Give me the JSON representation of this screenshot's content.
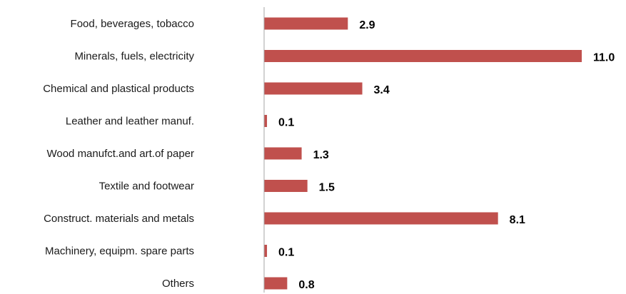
{
  "chart_data": {
    "type": "bar",
    "orientation": "horizontal",
    "categories": [
      "Food, beverages, tobacco",
      "Minerals, fuels, electricity",
      "Chemical and plastical products",
      "Leather and leather manuf.",
      "Wood manufct.and art.of paper",
      "Textile and footwear",
      "Construct. materials and metals",
      "Machinery, equipm. spare parts",
      "Others"
    ],
    "values": [
      2.9,
      11.0,
      3.4,
      0.1,
      1.3,
      1.5,
      8.1,
      0.1,
      0.8
    ],
    "value_labels": [
      "2.9",
      "11.0",
      "3.4",
      "0.1",
      "1.3",
      "1.5",
      "8.1",
      "0.1",
      "0.8"
    ],
    "bar_color": "#c0504d",
    "axis_color": "#a6a6a6",
    "xlim": [
      0,
      11.0
    ],
    "grid": false,
    "legend": "none",
    "title": "",
    "xlabel": "",
    "ylabel": ""
  }
}
